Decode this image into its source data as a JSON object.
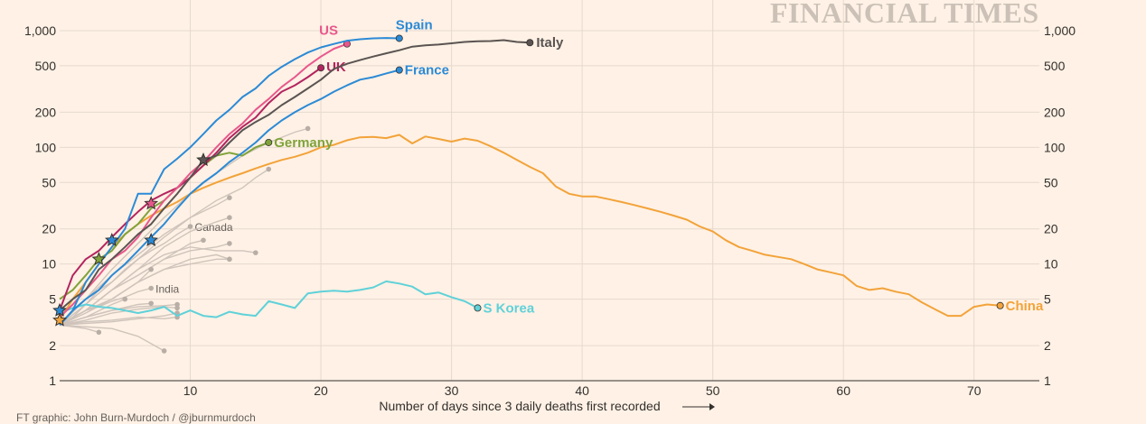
{
  "brand": "FINANCIAL TIMES",
  "credit": "FT graphic: John Burn-Murdoch / @jburnmurdoch",
  "chart_data": {
    "type": "line",
    "xlabel": "Number of days since 3 daily deaths first recorded",
    "ylabel": "",
    "yscale": "log",
    "xlim": [
      0,
      75
    ],
    "ylim": [
      1,
      1000
    ],
    "x_ticks": [
      10,
      20,
      30,
      40,
      50,
      60,
      70
    ],
    "y_ticks": [
      1,
      2,
      5,
      10,
      20,
      50,
      100,
      200,
      500,
      1000
    ],
    "y_tick_labels": [
      "1",
      "2",
      "5",
      "10",
      "20",
      "50",
      "100",
      "200",
      "500",
      "1,000"
    ],
    "grid": true,
    "colors": {
      "US": "#e8578c",
      "Spain": "#2b8ad6",
      "Italy": "#5a5452",
      "UK": "#b3245f",
      "France": "#2b8ad6",
      "Germany": "#7fa33a",
      "China": "#f2a33a",
      "S Korea": "#5fd1d9",
      "other": "#cfc4bb",
      "other_dot": "#b8aea6"
    },
    "series": [
      {
        "name": "Italy",
        "label": "Italy",
        "x": [
          0,
          1,
          2,
          3,
          4,
          5,
          6,
          7,
          8,
          9,
          10,
          11,
          12,
          13,
          14,
          15,
          16,
          17,
          18,
          19,
          20,
          21,
          22,
          23,
          24,
          25,
          26,
          27,
          28,
          29,
          30,
          31,
          32,
          33,
          34,
          35,
          36
        ],
        "y": [
          4,
          5,
          6,
          9,
          11,
          14,
          18,
          22,
          30,
          40,
          55,
          78,
          85,
          110,
          140,
          165,
          190,
          230,
          270,
          320,
          380,
          470,
          520,
          560,
          600,
          640,
          680,
          730,
          750,
          760,
          780,
          800,
          810,
          815,
          830,
          800,
          790
        ]
      },
      {
        "name": "Spain",
        "label": "Spain",
        "x": [
          0,
          1,
          2,
          3,
          4,
          5,
          6,
          7,
          8,
          9,
          10,
          11,
          12,
          13,
          14,
          15,
          16,
          17,
          18,
          19,
          20,
          21,
          22,
          23,
          24,
          25,
          26
        ],
        "y": [
          3,
          4,
          7,
          10,
          14,
          20,
          40,
          40,
          65,
          80,
          100,
          130,
          170,
          210,
          270,
          320,
          410,
          490,
          570,
          650,
          720,
          770,
          820,
          845,
          860,
          865,
          860
        ]
      },
      {
        "name": "US",
        "label": "US",
        "x": [
          0,
          1,
          2,
          3,
          4,
          5,
          6,
          7,
          8,
          9,
          10,
          11,
          12,
          13,
          14,
          15,
          16,
          17,
          18,
          19,
          20,
          21,
          22
        ],
        "y": [
          3.5,
          4.5,
          6,
          8,
          11,
          13,
          17,
          25,
          35,
          45,
          60,
          75,
          100,
          130,
          160,
          210,
          260,
          330,
          400,
          500,
          600,
          700,
          770
        ]
      },
      {
        "name": "UK",
        "label": "UK",
        "x": [
          0,
          1,
          2,
          3,
          4,
          5,
          6,
          7,
          8,
          9,
          10,
          11,
          12,
          13,
          14,
          15,
          16,
          17,
          18,
          19,
          20
        ],
        "y": [
          4,
          8,
          11,
          13,
          17,
          22,
          28,
          35,
          40,
          45,
          55,
          70,
          90,
          120,
          150,
          180,
          240,
          300,
          340,
          400,
          480
        ]
      },
      {
        "name": "France",
        "label": "France",
        "x": [
          0,
          1,
          2,
          3,
          4,
          5,
          6,
          7,
          8,
          9,
          10,
          11,
          12,
          13,
          14,
          15,
          16,
          17,
          18,
          19,
          20,
          21,
          22,
          23,
          24,
          25,
          26
        ],
        "y": [
          3,
          4,
          5,
          6,
          8,
          10,
          13,
          17,
          22,
          30,
          40,
          50,
          60,
          75,
          90,
          110,
          140,
          170,
          200,
          230,
          260,
          300,
          340,
          380,
          400,
          430,
          460
        ]
      },
      {
        "name": "Germany",
        "label": "Germany",
        "x": [
          0,
          1,
          2,
          3,
          4,
          5,
          6,
          7,
          8,
          9,
          10,
          11,
          12,
          13,
          14,
          15,
          16
        ],
        "y": [
          5,
          6,
          8,
          11,
          13,
          18,
          22,
          30,
          35,
          45,
          55,
          70,
          85,
          90,
          85,
          100,
          110
        ]
      },
      {
        "name": "China",
        "label": "China",
        "x": [
          0,
          1,
          2,
          3,
          4,
          5,
          6,
          7,
          8,
          9,
          10,
          11,
          12,
          13,
          14,
          15,
          16,
          17,
          18,
          19,
          20,
          21,
          22,
          23,
          24,
          25,
          26,
          27,
          28,
          29,
          30,
          31,
          32,
          33,
          34,
          35,
          36,
          37,
          38,
          39,
          40,
          41,
          42,
          43,
          44,
          45,
          46,
          47,
          48,
          49,
          50,
          51,
          52,
          53,
          54,
          55,
          56,
          57,
          58,
          59,
          60,
          61,
          62,
          63,
          64,
          65,
          66,
          67,
          68,
          69,
          70,
          71,
          72
        ],
        "y": [
          3.3,
          5,
          7,
          10,
          14,
          18,
          22,
          26,
          30,
          34,
          40,
          45,
          50,
          55,
          60,
          66,
          72,
          78,
          83,
          90,
          100,
          105,
          115,
          122,
          123,
          120,
          128,
          108,
          124,
          118,
          112,
          119,
          114,
          102,
          90,
          78,
          68,
          60,
          46,
          40,
          38,
          38,
          36,
          34,
          32,
          30,
          28,
          26,
          24,
          21,
          19,
          16,
          14,
          13,
          12,
          11.5,
          11,
          10,
          9,
          8.5,
          8,
          6.5,
          6,
          6.2,
          5.8,
          5.5,
          4.7,
          4.1,
          3.6,
          3.6,
          4.3,
          4.5,
          4.4
        ]
      },
      {
        "name": "S Korea",
        "label": "S Korea",
        "x": [
          0,
          1,
          2,
          3,
          4,
          5,
          6,
          7,
          8,
          9,
          10,
          11,
          12,
          13,
          14,
          15,
          16,
          17,
          18,
          19,
          20,
          21,
          22,
          23,
          24,
          25,
          26,
          27,
          28,
          29,
          30,
          31,
          32
        ],
        "y": [
          3.8,
          4.2,
          4.5,
          4.3,
          4.2,
          4.0,
          3.8,
          4.0,
          4.3,
          3.6,
          4.0,
          3.6,
          3.5,
          3.9,
          3.7,
          3.6,
          4.8,
          4.5,
          4.2,
          5.6,
          5.8,
          5.9,
          5.8,
          6.0,
          6.3,
          7.1,
          6.8,
          6.4,
          5.5,
          5.7,
          5.2,
          4.8,
          4.2
        ]
      }
    ],
    "other_series": [
      {
        "label": "Canada",
        "x": [
          0,
          1,
          2,
          3,
          4,
          5,
          6,
          7,
          8,
          9,
          10
        ],
        "y": [
          3,
          3.5,
          4.5,
          6,
          7,
          9,
          11,
          13,
          15,
          18,
          21
        ]
      },
      {
        "label": "India",
        "x": [
          0,
          1,
          2,
          3,
          4,
          5,
          6,
          7
        ],
        "y": [
          3,
          3.5,
          4,
          4.3,
          4.8,
          5.2,
          5.8,
          6.2
        ]
      },
      {
        "label": "",
        "x": [
          0,
          2,
          4,
          6,
          8,
          10,
          12,
          14,
          16,
          18,
          19
        ],
        "y": [
          3,
          5,
          9,
          15,
          25,
          40,
          60,
          85,
          110,
          135,
          145
        ]
      },
      {
        "label": "",
        "x": [
          0,
          2,
          4,
          6,
          8,
          10,
          12,
          14,
          15,
          16
        ],
        "y": [
          3,
          5,
          8,
          12,
          18,
          25,
          35,
          45,
          55,
          65
        ]
      },
      {
        "label": "",
        "x": [
          0,
          2,
          4,
          6,
          8,
          10,
          12,
          13
        ],
        "y": [
          3,
          4.5,
          7,
          11,
          17,
          25,
          32,
          37
        ]
      },
      {
        "label": "",
        "x": [
          0,
          2,
          4,
          6,
          8,
          10,
          11
        ],
        "y": [
          3,
          4,
          6,
          8,
          11,
          15,
          16
        ]
      },
      {
        "label": "",
        "x": [
          0,
          2,
          4,
          6,
          8,
          10,
          12,
          13
        ],
        "y": [
          3,
          4,
          6,
          9,
          14,
          19,
          23,
          25
        ]
      },
      {
        "label": "",
        "x": [
          0,
          2,
          4,
          6,
          8,
          10,
          12,
          13
        ],
        "y": [
          3,
          4,
          6,
          8,
          11,
          13,
          14,
          15
        ]
      },
      {
        "label": "",
        "x": [
          0,
          2,
          4,
          6,
          8,
          10,
          12,
          14,
          15
        ],
        "y": [
          3,
          4,
          6,
          9,
          12,
          14,
          13,
          13,
          12.5
        ]
      },
      {
        "label": "",
        "x": [
          0,
          2,
          4,
          6,
          8,
          10,
          12,
          13
        ],
        "y": [
          3,
          4,
          5,
          7,
          9,
          11,
          12,
          11
        ]
      },
      {
        "label": "",
        "x": [
          0,
          2,
          4,
          6,
          8,
          9
        ],
        "y": [
          3,
          3.5,
          4,
          4.3,
          4.4,
          4.5
        ]
      },
      {
        "label": "",
        "x": [
          0,
          2,
          4,
          6,
          8,
          9
        ],
        "y": [
          3,
          3.3,
          3.8,
          4.1,
          4.3,
          4.2
        ]
      },
      {
        "label": "",
        "x": [
          0,
          2,
          4,
          6,
          8,
          9
        ],
        "y": [
          3,
          3.2,
          3.3,
          3.5,
          3.4,
          3.5
        ]
      },
      {
        "label": "",
        "x": [
          0,
          2,
          4,
          6,
          8,
          9
        ],
        "y": [
          3,
          3.1,
          3.2,
          3.4,
          3.6,
          3.8
        ]
      },
      {
        "label": "",
        "x": [
          0,
          2,
          4,
          6,
          8,
          10,
          12,
          13
        ],
        "y": [
          3,
          3.8,
          5,
          7,
          9,
          10,
          11,
          11
        ]
      },
      {
        "label": "",
        "x": [
          0,
          1,
          2,
          3
        ],
        "y": [
          3,
          2.9,
          2.8,
          2.6
        ]
      },
      {
        "label": "",
        "x": [
          0,
          2,
          4,
          6,
          8
        ],
        "y": [
          3,
          2.9,
          2.8,
          2.4,
          1.8
        ]
      },
      {
        "label": "",
        "x": [
          0,
          2,
          4,
          5
        ],
        "y": [
          3,
          3.5,
          4.5,
          5
        ]
      },
      {
        "label": "",
        "x": [
          0,
          2,
          4,
          6,
          7
        ],
        "y": [
          3,
          4,
          5,
          7,
          9
        ]
      },
      {
        "label": "",
        "x": [
          0,
          2,
          4,
          6,
          7
        ],
        "y": [
          3,
          3.5,
          4,
          4.5,
          4.6
        ]
      }
    ],
    "annotations": [
      {
        "type": "star",
        "x": 0,
        "y": 3.3,
        "series": "China"
      },
      {
        "type": "star",
        "x": 0,
        "y": 4,
        "series": "France"
      },
      {
        "type": "star",
        "x": 3,
        "y": 11,
        "series": "Germany"
      },
      {
        "type": "star",
        "x": 4,
        "y": 16,
        "series": "Spain"
      },
      {
        "type": "star",
        "x": 7,
        "y": 33,
        "series": "US"
      },
      {
        "type": "star",
        "x": 7,
        "y": 16,
        "series": "France"
      },
      {
        "type": "star",
        "x": 11,
        "y": 78,
        "series": "Italy"
      }
    ]
  }
}
